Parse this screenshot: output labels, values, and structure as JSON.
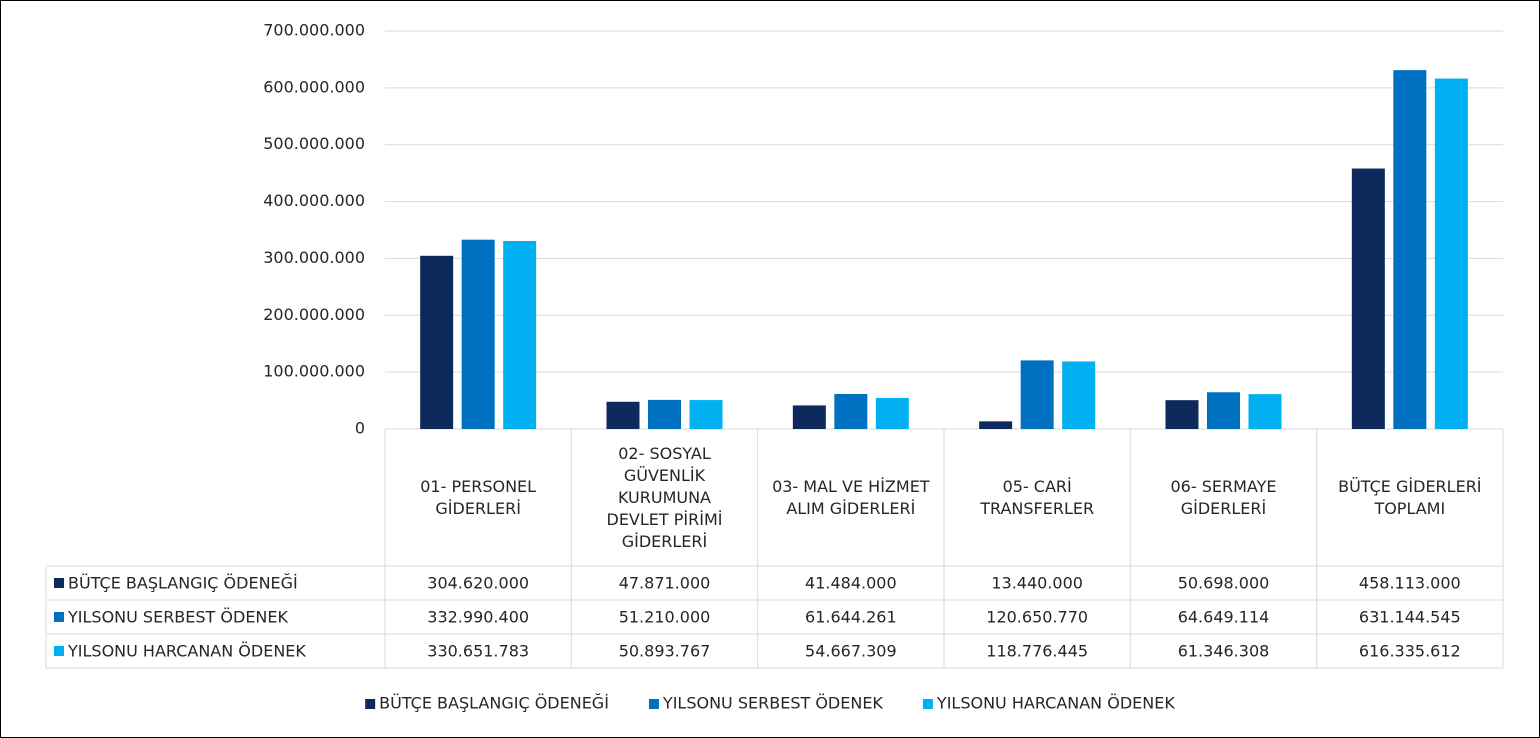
{
  "chart_data": {
    "type": "bar",
    "categories": [
      "01- PERSONEL GİDERLERİ",
      "02- SOSYAL GÜVENLİK KURUMUNA DEVLET PİRİMİ GİDERLERİ",
      "03- MAL VE HİZMET ALIM GİDERLERİ",
      "05- CARİ TRANSFERLER",
      "06- SERMAYE GİDERLERİ",
      "BÜTÇE GİDERLERİ TOPLAMI"
    ],
    "series": [
      {
        "name": "BÜTÇE BAŞLANGIÇ ÖDENEĞİ",
        "color": "#0e2a5c",
        "values": [
          304620000,
          47871000,
          41484000,
          13440000,
          50698000,
          458113000
        ],
        "value_labels": [
          "304.620.000",
          "47.871.000",
          "41.484.000",
          "13.440.000",
          "50.698.000",
          "458.113.000"
        ]
      },
      {
        "name": "YILSONU SERBEST ÖDENEK",
        "color": "#0070c0",
        "values": [
          332990400,
          51210000,
          61644261,
          120650770,
          64649114,
          631144545
        ],
        "value_labels": [
          "332.990.400",
          "51.210.000",
          "61.644.261",
          "120.650.770",
          "64.649.114",
          "631.144.545"
        ]
      },
      {
        "name": "YILSONU HARCANAN ÖDENEK",
        "color": "#00b0f0",
        "values": [
          330651783,
          50893767,
          54667309,
          118776445,
          61346308,
          616335612
        ],
        "value_labels": [
          "330.651.783",
          "50.893.767",
          "54.667.309",
          "118.776.445",
          "61.346.308",
          "616.335.612"
        ]
      }
    ],
    "ylim": [
      0,
      700000000
    ],
    "yticks": [
      0,
      {
        "value": 100000000,
        "label": "100.000.000"
      },
      {
        "value": 200000000,
        "label": "200.000.000"
      },
      {
        "value": 300000000,
        "label": "300.000.000"
      },
      {
        "value": 400000000,
        "label": "400.000.000"
      },
      {
        "value": 500000000,
        "label": "500.000.000"
      },
      {
        "value": 600000000,
        "label": "600.000.000"
      },
      {
        "value": 700000000,
        "label": "700.000.000"
      }
    ],
    "grid": true,
    "legend": "bottom"
  }
}
